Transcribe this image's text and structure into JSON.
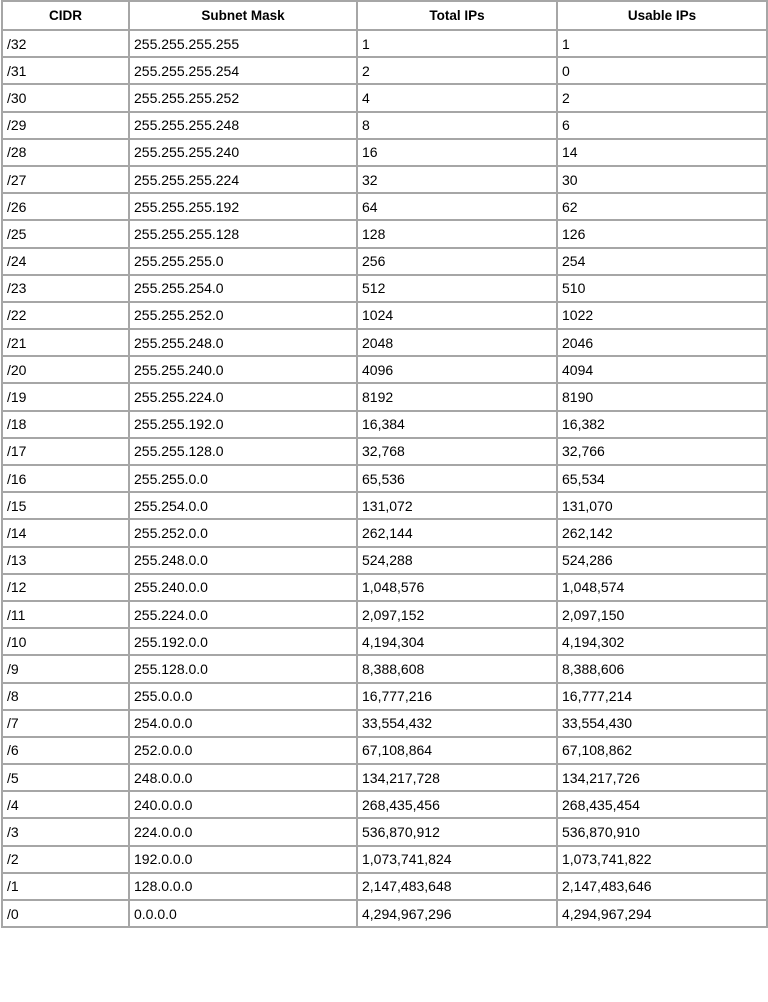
{
  "table": {
    "headers": [
      "CIDR",
      "Subnet Mask",
      "Total IPs",
      "Usable IPs"
    ],
    "rows": [
      [
        "/32",
        "255.255.255.255",
        "1",
        "1"
      ],
      [
        "/31",
        "255.255.255.254",
        "2",
        "0"
      ],
      [
        "/30",
        "255.255.255.252",
        "4",
        "2"
      ],
      [
        "/29",
        "255.255.255.248",
        "8",
        "6"
      ],
      [
        "/28",
        "255.255.255.240",
        "16",
        "14"
      ],
      [
        "/27",
        "255.255.255.224",
        "32",
        "30"
      ],
      [
        "/26",
        "255.255.255.192",
        "64",
        "62"
      ],
      [
        "/25",
        "255.255.255.128",
        "128",
        "126"
      ],
      [
        "/24",
        "255.255.255.0",
        "256",
        "254"
      ],
      [
        "/23",
        "255.255.254.0",
        "512",
        "510"
      ],
      [
        "/22",
        "255.255.252.0",
        "1024",
        "1022"
      ],
      [
        "/21",
        "255.255.248.0",
        "2048",
        "2046"
      ],
      [
        "/20",
        "255.255.240.0",
        "4096",
        "4094"
      ],
      [
        "/19",
        "255.255.224.0",
        "8192",
        "8190"
      ],
      [
        "/18",
        "255.255.192.0",
        "16,384",
        "16,382"
      ],
      [
        "/17",
        "255.255.128.0",
        "32,768",
        "32,766"
      ],
      [
        "/16",
        "255.255.0.0",
        "65,536",
        "65,534"
      ],
      [
        "/15",
        "255.254.0.0",
        "131,072",
        "131,070"
      ],
      [
        "/14",
        "255.252.0.0",
        "262,144",
        "262,142"
      ],
      [
        "/13",
        "255.248.0.0",
        "524,288",
        "524,286"
      ],
      [
        "/12",
        "255.240.0.0",
        "1,048,576",
        "1,048,574"
      ],
      [
        "/11",
        "255.224.0.0",
        "2,097,152",
        "2,097,150"
      ],
      [
        "/10",
        "255.192.0.0",
        "4,194,304",
        "4,194,302"
      ],
      [
        "/9",
        "255.128.0.0",
        "8,388,608",
        "8,388,606"
      ],
      [
        "/8",
        "255.0.0.0",
        "16,777,216",
        "16,777,214"
      ],
      [
        "/7",
        "254.0.0.0",
        "33,554,432",
        "33,554,430"
      ],
      [
        "/6",
        "252.0.0.0",
        "67,108,864",
        "67,108,862"
      ],
      [
        "/5",
        "248.0.0.0",
        "134,217,728",
        "134,217,726"
      ],
      [
        "/4",
        "240.0.0.0",
        "268,435,456",
        "268,435,454"
      ],
      [
        "/3",
        "224.0.0.0",
        "536,870,912",
        "536,870,910"
      ],
      [
        "/2",
        "192.0.0.0",
        "1,073,741,824",
        "1,073,741,822"
      ],
      [
        "/1",
        "128.0.0.0",
        "2,147,483,648",
        "2,147,483,646"
      ],
      [
        "/0",
        "0.0.0.0",
        "4,294,967,296",
        "4,294,967,294"
      ]
    ]
  },
  "colors": {
    "border": "#a6a6a6",
    "text": "#000000"
  }
}
